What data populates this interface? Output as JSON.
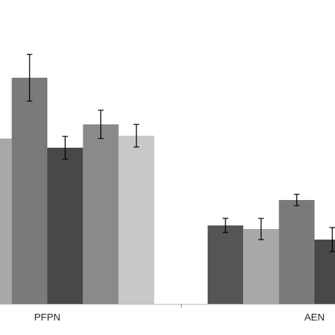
{
  "chart_data": {
    "type": "bar",
    "categories": [
      "PFPN",
      "AEN"
    ],
    "ylim": [
      0,
      430
    ],
    "series": [
      {
        "color": "#555555",
        "values": [
          null,
          111
        ],
        "errors": [
          null,
          10
        ]
      },
      {
        "color": "#a8a8a8",
        "values": [
          234,
          106
        ],
        "errors": [
          null,
          15
        ]
      },
      {
        "color": "#7a7a7a",
        "values": [
          320,
          147
        ],
        "errors": [
          33,
          8
        ]
      },
      {
        "color": "#484848",
        "values": [
          221,
          91
        ],
        "errors": [
          16,
          17
        ]
      },
      {
        "color": "#8a8a8a",
        "values": [
          254,
          null
        ],
        "errors": [
          20,
          null
        ]
      },
      {
        "color": "#c8c8c8",
        "values": [
          238,
          null
        ],
        "errors": [
          16,
          null
        ]
      }
    ]
  }
}
